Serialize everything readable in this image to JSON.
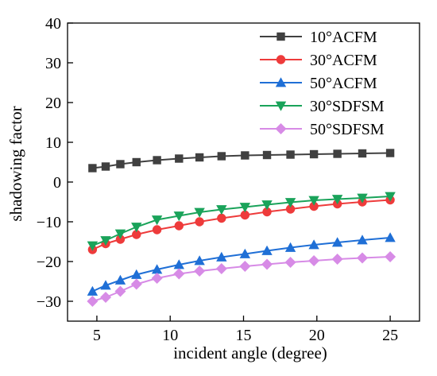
{
  "chart_data": {
    "type": "line",
    "title": "",
    "xlabel": "incident angle (degree)",
    "ylabel": "shadowing factor",
    "xlim": [
      3,
      27
    ],
    "ylim": [
      -35,
      40
    ],
    "x_ticks": [
      5,
      10,
      15,
      20,
      25
    ],
    "y_ticks": [
      -30,
      -20,
      -10,
      0,
      10,
      20,
      30,
      40
    ],
    "x_tick_labels": [
      "5",
      "10",
      "15",
      "20",
      "25"
    ],
    "y_tick_labels": [
      "−30",
      "−20",
      "−10",
      "0",
      "10",
      "20",
      "30",
      "40"
    ],
    "legend_position": "top-right",
    "grid": false,
    "x": [
      4.7,
      5.6,
      6.6,
      7.7,
      9.1,
      10.6,
      12.0,
      13.5,
      15.1,
      16.6,
      18.2,
      19.8,
      21.4,
      23.1,
      25.0
    ],
    "series": [
      {
        "name": "10°ACFM",
        "color": "#404040",
        "marker": "square",
        "values": [
          3.5,
          3.9,
          4.5,
          5.0,
          5.5,
          5.9,
          6.2,
          6.5,
          6.7,
          6.8,
          6.9,
          7.0,
          7.1,
          7.2,
          7.3
        ]
      },
      {
        "name": "30°ACFM",
        "color": "#ee3b3b",
        "marker": "circle",
        "values": [
          -17.0,
          -15.5,
          -14.4,
          -13.2,
          -12.0,
          -11.0,
          -10.0,
          -9.1,
          -8.3,
          -7.5,
          -6.8,
          -6.1,
          -5.5,
          -5.0,
          -4.5
        ]
      },
      {
        "name": "50°ACFM",
        "color": "#1f6fd6",
        "marker": "triangle-up",
        "values": [
          -27.5,
          -26.0,
          -24.7,
          -23.3,
          -22.0,
          -20.8,
          -19.8,
          -18.9,
          -18.1,
          -17.3,
          -16.5,
          -15.8,
          -15.2,
          -14.6,
          -14.0
        ]
      },
      {
        "name": "30°SDFSM",
        "color": "#1aa35a",
        "marker": "triangle-down",
        "values": [
          -16.0,
          -14.7,
          -13.0,
          -11.3,
          -9.5,
          -8.5,
          -7.6,
          -6.9,
          -6.3,
          -5.7,
          -5.1,
          -4.6,
          -4.3,
          -4.0,
          -3.6
        ]
      },
      {
        "name": "50°SDFSM",
        "color": "#d78be6",
        "marker": "diamond",
        "values": [
          -30.0,
          -29.0,
          -27.5,
          -25.7,
          -24.2,
          -23.1,
          -22.4,
          -21.8,
          -21.2,
          -20.7,
          -20.2,
          -19.8,
          -19.4,
          -19.1,
          -18.8
        ]
      }
    ]
  }
}
